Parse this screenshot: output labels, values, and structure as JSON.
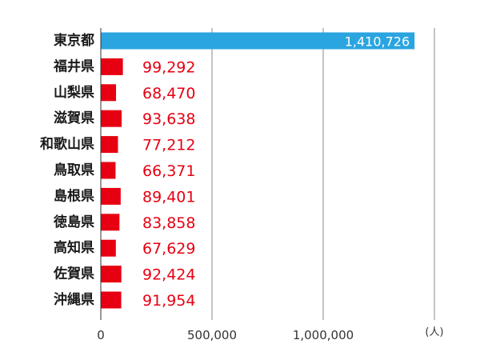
{
  "chart_data": {
    "type": "bar",
    "orientation": "horizontal",
    "title": "",
    "xlabel": "",
    "ylabel": "",
    "unit": "(人)",
    "categories": [
      "東京都",
      "福井県",
      "山梨県",
      "滋賀県",
      "和歌山県",
      "鳥取県",
      "島根県",
      "徳島県",
      "高知県",
      "佐賀県",
      "沖縄県"
    ],
    "values": [
      1410726,
      99292,
      68470,
      93638,
      77212,
      66371,
      89401,
      83858,
      67629,
      92424,
      91954
    ],
    "value_labels": [
      "1,410,726",
      "99,292",
      "68,470",
      "93,638",
      "77,212",
      "66,371",
      "89,401",
      "83,858",
      "67,629",
      "92,424",
      "91,954"
    ],
    "bar_colors": [
      "#2aa5e0",
      "#e60012",
      "#e60012",
      "#e60012",
      "#e60012",
      "#e60012",
      "#e60012",
      "#e60012",
      "#e60012",
      "#e60012",
      "#e60012"
    ],
    "xlim": [
      0,
      1500000
    ],
    "x_ticks": [
      0,
      500000,
      1000000
    ],
    "x_tick_labels": [
      "0",
      "500,000",
      "1,000,000"
    ],
    "grid": true,
    "legend": "none"
  }
}
